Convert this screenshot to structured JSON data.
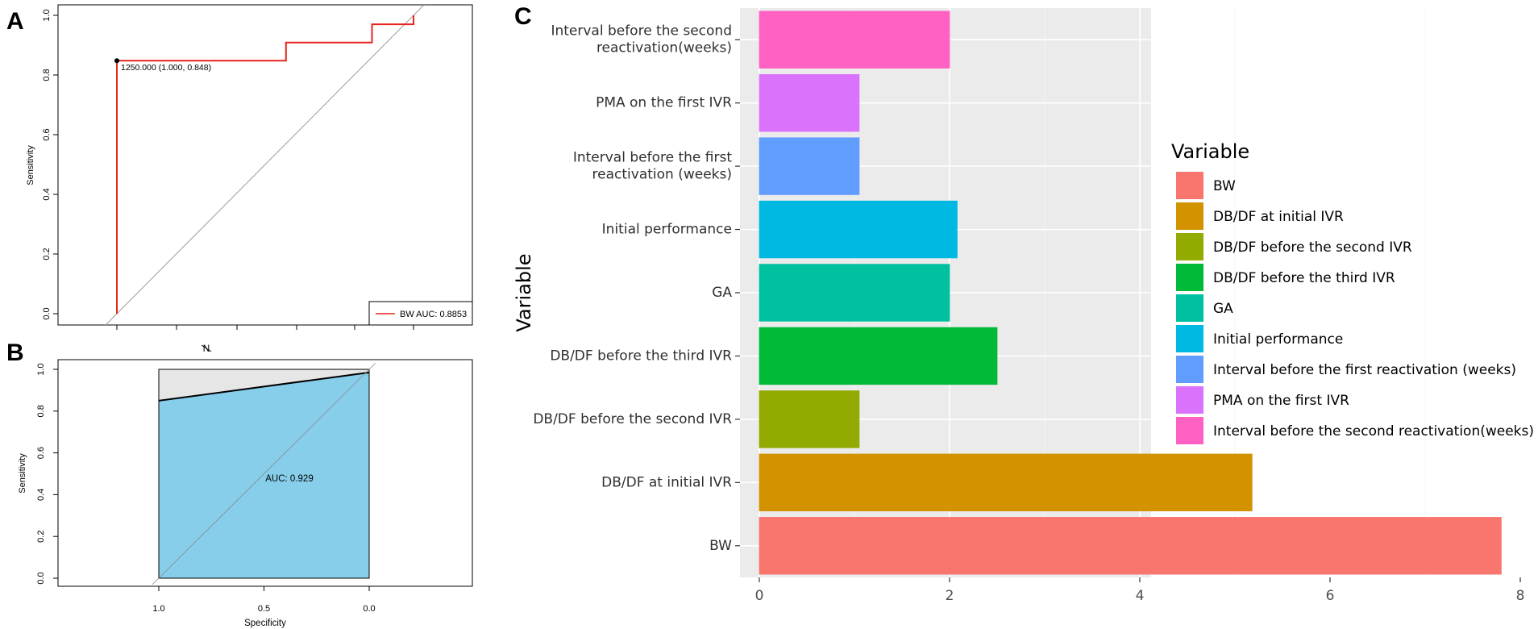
{
  "chart_data": [
    {
      "panel": "A",
      "type": "line",
      "title": "",
      "xlabel": "",
      "ylabel": "Sensitivity",
      "xlim": [
        1.0,
        0.0
      ],
      "ylim": [
        0.0,
        1.0
      ],
      "y_ticks": [
        "0.0",
        "0.2",
        "0.4",
        "0.6",
        "0.8",
        "1.0"
      ],
      "series": [
        {
          "name": "BW",
          "color": "#e8231c",
          "points": [
            [
              1.0,
              0.0
            ],
            [
              1.0,
              0.848
            ],
            [
              0.43,
              0.848
            ],
            [
              0.43,
              0.909
            ],
            [
              0.14,
              0.909
            ],
            [
              0.14,
              0.97
            ],
            [
              0.0,
              0.97
            ],
            [
              0.0,
              1.0
            ]
          ]
        }
      ],
      "point_annotation": {
        "specificity": 1.0,
        "sensitivity": 0.848,
        "label": "1250.000 (1.000, 0.848)"
      },
      "legend": {
        "position": "bottom-right",
        "entry": "BW AUC: 0.8853"
      }
    },
    {
      "panel": "B",
      "type": "area",
      "title": "",
      "top_label": "N",
      "xlabel": "Specificity",
      "ylabel": "Sensitivity",
      "x_ticks": [
        "1.0",
        "0.5",
        "0.0"
      ],
      "y_ticks": [
        "0.0",
        "0.2",
        "0.4",
        "0.6",
        "0.8",
        "1.0"
      ],
      "curve": [
        [
          1.0,
          0.0
        ],
        [
          1.0,
          0.85
        ],
        [
          0.0,
          0.985
        ],
        [
          0.0,
          0.0
        ]
      ],
      "fill_color": "#87ceeb",
      "annotation": "AUC: 0.929"
    },
    {
      "panel": "C",
      "type": "bar",
      "orientation": "horizontal",
      "ylabel": "Variable",
      "xlabel": "",
      "xlim": [
        0,
        8
      ],
      "x_ticks": [
        "0",
        "2",
        "4",
        "6",
        "8"
      ],
      "categories": [
        "BW",
        "DB/DF at initial IVR",
        "DB/DF before the second IVR",
        "DB/DF before the third IVR",
        "GA",
        "Initial performance",
        "Interval before the first reactivation (weeks)",
        "PMA on the first IVR",
        "Interval before the second reactivation(weeks)"
      ],
      "axis_labels": [
        [
          "BW"
        ],
        [
          "DB/DF at initial IVR"
        ],
        [
          "DB/DF before the second IVR"
        ],
        [
          "DB/DF before the third IVR"
        ],
        [
          "GA"
        ],
        [
          "Initial performance"
        ],
        [
          "Interval before the first",
          "reactivation (weeks)"
        ],
        [
          "PMA on the first IVR"
        ],
        [
          "Interval before the second",
          "reactivation(weeks)"
        ]
      ],
      "values": [
        7.8,
        5.18,
        1.05,
        2.5,
        2.0,
        2.08,
        1.05,
        1.05,
        2.0
      ],
      "colors": [
        "#f8766d",
        "#d39200",
        "#93aa00",
        "#00ba38",
        "#00c19f",
        "#00b9e3",
        "#619cff",
        "#db72fb",
        "#ff61c3"
      ],
      "legend": {
        "title": "Variable",
        "position": "right"
      }
    }
  ],
  "panel_labels": {
    "a": "A",
    "b": "B",
    "c": "C"
  }
}
